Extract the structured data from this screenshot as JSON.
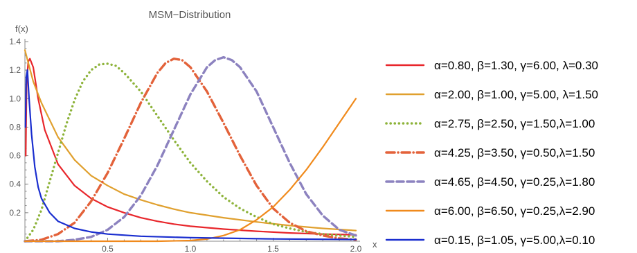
{
  "chart_data": {
    "type": "line",
    "title": "MSM−Distribution",
    "xlabel": "x",
    "ylabel": "f(x)",
    "xlim": [
      0,
      2.0
    ],
    "ylim": [
      0,
      1.4
    ],
    "x_ticks": [
      {
        "value": 0.5,
        "label": "0.5"
      },
      {
        "value": 1.0,
        "label": "1.0"
      },
      {
        "value": 1.5,
        "label": "1.5"
      },
      {
        "value": 2.0,
        "label": "2.0"
      }
    ],
    "y_ticks": [
      {
        "value": 0.2,
        "label": "0.2"
      },
      {
        "value": 0.4,
        "label": "0.4"
      },
      {
        "value": 0.6,
        "label": "0.6"
      },
      {
        "value": 0.8,
        "label": "0.8"
      },
      {
        "value": 1.0,
        "label": "1.0"
      },
      {
        "value": 1.2,
        "label": "1.2"
      },
      {
        "value": 1.4,
        "label": "1.4"
      }
    ],
    "grid": false,
    "legend_position": "right",
    "series": [
      {
        "name": "α=0.80, β=1.30, γ=6.00, λ=0.30",
        "color": "#e8262b",
        "dash": "solid",
        "points": [
          [
            0.005,
            0.6
          ],
          [
            0.01,
            1.1
          ],
          [
            0.02,
            1.26
          ],
          [
            0.03,
            1.28
          ],
          [
            0.05,
            1.22
          ],
          [
            0.08,
            1.0
          ],
          [
            0.12,
            0.78
          ],
          [
            0.2,
            0.54
          ],
          [
            0.3,
            0.39
          ],
          [
            0.4,
            0.3
          ],
          [
            0.5,
            0.24
          ],
          [
            0.6,
            0.2
          ],
          [
            0.7,
            0.165
          ],
          [
            0.8,
            0.14
          ],
          [
            0.9,
            0.12
          ],
          [
            1.0,
            0.105
          ],
          [
            1.2,
            0.085
          ],
          [
            1.4,
            0.07
          ],
          [
            1.6,
            0.058
          ],
          [
            1.8,
            0.05
          ],
          [
            2.0,
            0.045
          ]
        ]
      },
      {
        "name": "α=2.00, β=1.00, γ=5.00, λ=1.50",
        "color": "#e0a02e",
        "dash": "solid",
        "points": [
          [
            0.0,
            1.34
          ],
          [
            0.05,
            1.12
          ],
          [
            0.1,
            0.97
          ],
          [
            0.2,
            0.73
          ],
          [
            0.3,
            0.57
          ],
          [
            0.4,
            0.46
          ],
          [
            0.5,
            0.39
          ],
          [
            0.6,
            0.33
          ],
          [
            0.7,
            0.29
          ],
          [
            0.8,
            0.255
          ],
          [
            0.9,
            0.225
          ],
          [
            1.0,
            0.2
          ],
          [
            1.2,
            0.165
          ],
          [
            1.4,
            0.135
          ],
          [
            1.6,
            0.11
          ],
          [
            1.8,
            0.09
          ],
          [
            2.0,
            0.075
          ]
        ]
      },
      {
        "name": "α=2.75, β=2.50, γ=1.50,λ=1.00",
        "color": "#8db33a",
        "dash": "dotted",
        "points": [
          [
            0.0,
            0.0
          ],
          [
            0.05,
            0.08
          ],
          [
            0.1,
            0.22
          ],
          [
            0.15,
            0.42
          ],
          [
            0.2,
            0.62
          ],
          [
            0.25,
            0.82
          ],
          [
            0.3,
            0.99
          ],
          [
            0.35,
            1.12
          ],
          [
            0.4,
            1.2
          ],
          [
            0.45,
            1.24
          ],
          [
            0.5,
            1.245
          ],
          [
            0.55,
            1.23
          ],
          [
            0.6,
            1.18
          ],
          [
            0.7,
            1.05
          ],
          [
            0.8,
            0.88
          ],
          [
            0.9,
            0.71
          ],
          [
            1.0,
            0.55
          ],
          [
            1.1,
            0.42
          ],
          [
            1.2,
            0.31
          ],
          [
            1.3,
            0.23
          ],
          [
            1.4,
            0.17
          ],
          [
            1.5,
            0.12
          ],
          [
            1.6,
            0.09
          ],
          [
            1.7,
            0.065
          ],
          [
            1.8,
            0.05
          ],
          [
            1.9,
            0.04
          ],
          [
            2.0,
            0.03
          ]
        ]
      },
      {
        "name": "α=4.25, β=3.50, γ=0.50,λ=1.50",
        "color": "#e3623a",
        "dash": "dashdot",
        "points": [
          [
            0.0,
            0.0
          ],
          [
            0.1,
            0.01
          ],
          [
            0.2,
            0.05
          ],
          [
            0.3,
            0.13
          ],
          [
            0.4,
            0.28
          ],
          [
            0.5,
            0.48
          ],
          [
            0.6,
            0.72
          ],
          [
            0.7,
            0.97
          ],
          [
            0.8,
            1.18
          ],
          [
            0.85,
            1.25
          ],
          [
            0.9,
            1.28
          ],
          [
            0.95,
            1.27
          ],
          [
            1.0,
            1.22
          ],
          [
            1.1,
            1.05
          ],
          [
            1.2,
            0.83
          ],
          [
            1.3,
            0.6
          ],
          [
            1.4,
            0.39
          ],
          [
            1.5,
            0.23
          ],
          [
            1.6,
            0.13
          ],
          [
            1.7,
            0.07
          ],
          [
            1.8,
            0.04
          ],
          [
            1.9,
            0.02
          ],
          [
            2.0,
            0.01
          ]
        ]
      },
      {
        "name": "α=4.65, β=4.50, γ=0.25,λ=1.80",
        "color": "#8c82bf",
        "dash": "dashed",
        "points": [
          [
            0.0,
            0.0
          ],
          [
            0.2,
            0.0
          ],
          [
            0.3,
            0.01
          ],
          [
            0.4,
            0.03
          ],
          [
            0.5,
            0.08
          ],
          [
            0.6,
            0.17
          ],
          [
            0.7,
            0.32
          ],
          [
            0.8,
            0.53
          ],
          [
            0.9,
            0.78
          ],
          [
            1.0,
            1.03
          ],
          [
            1.1,
            1.22
          ],
          [
            1.15,
            1.27
          ],
          [
            1.2,
            1.29
          ],
          [
            1.25,
            1.27
          ],
          [
            1.3,
            1.22
          ],
          [
            1.4,
            1.05
          ],
          [
            1.5,
            0.8
          ],
          [
            1.6,
            0.55
          ],
          [
            1.7,
            0.33
          ],
          [
            1.8,
            0.18
          ],
          [
            1.9,
            0.08
          ],
          [
            2.0,
            0.04
          ]
        ]
      },
      {
        "name": "α=6.00, β=6.50, γ=0.25,λ=2.90",
        "color": "#f08a1c",
        "dash": "solid",
        "points": [
          [
            0.0,
            0.0
          ],
          [
            0.8,
            0.0
          ],
          [
            1.0,
            0.005
          ],
          [
            1.1,
            0.015
          ],
          [
            1.2,
            0.04
          ],
          [
            1.3,
            0.08
          ],
          [
            1.4,
            0.15
          ],
          [
            1.5,
            0.24
          ],
          [
            1.6,
            0.36
          ],
          [
            1.7,
            0.5
          ],
          [
            1.8,
            0.66
          ],
          [
            1.9,
            0.83
          ],
          [
            2.0,
            1.0
          ]
        ]
      },
      {
        "name": "α=0.15, β=1.05, γ=5.00,λ=0.10",
        "color": "#1a2ecf",
        "dash": "solid",
        "points": [
          [
            0.003,
            0.8
          ],
          [
            0.008,
            1.15
          ],
          [
            0.015,
            1.2
          ],
          [
            0.025,
            1.0
          ],
          [
            0.04,
            0.75
          ],
          [
            0.06,
            0.52
          ],
          [
            0.08,
            0.38
          ],
          [
            0.1,
            0.3
          ],
          [
            0.15,
            0.2
          ],
          [
            0.2,
            0.14
          ],
          [
            0.3,
            0.09
          ],
          [
            0.4,
            0.065
          ],
          [
            0.5,
            0.05
          ],
          [
            0.7,
            0.035
          ],
          [
            1.0,
            0.025
          ],
          [
            1.5,
            0.016
          ],
          [
            2.0,
            0.012
          ]
        ]
      }
    ]
  }
}
